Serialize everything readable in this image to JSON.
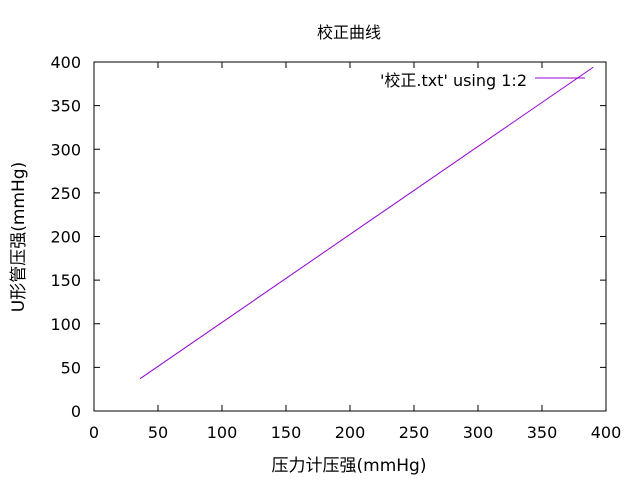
{
  "chart_data": {
    "type": "line",
    "title": "校正曲线",
    "xlabel": "压力计压强(mmHg)",
    "ylabel": "U形管压强(mmHg)",
    "xlim": [
      0,
      400
    ],
    "ylim": [
      0,
      400
    ],
    "xticks": [
      0,
      50,
      100,
      150,
      200,
      250,
      300,
      350,
      400
    ],
    "yticks": [
      0,
      50,
      100,
      150,
      200,
      250,
      300,
      350,
      400
    ],
    "grid": false,
    "legend_position": "top-right",
    "series": [
      {
        "name": "'校正.txt' using 1:2",
        "color": "#9400d3",
        "x": [
          36,
          390
        ],
        "y": [
          37,
          394
        ]
      }
    ]
  }
}
